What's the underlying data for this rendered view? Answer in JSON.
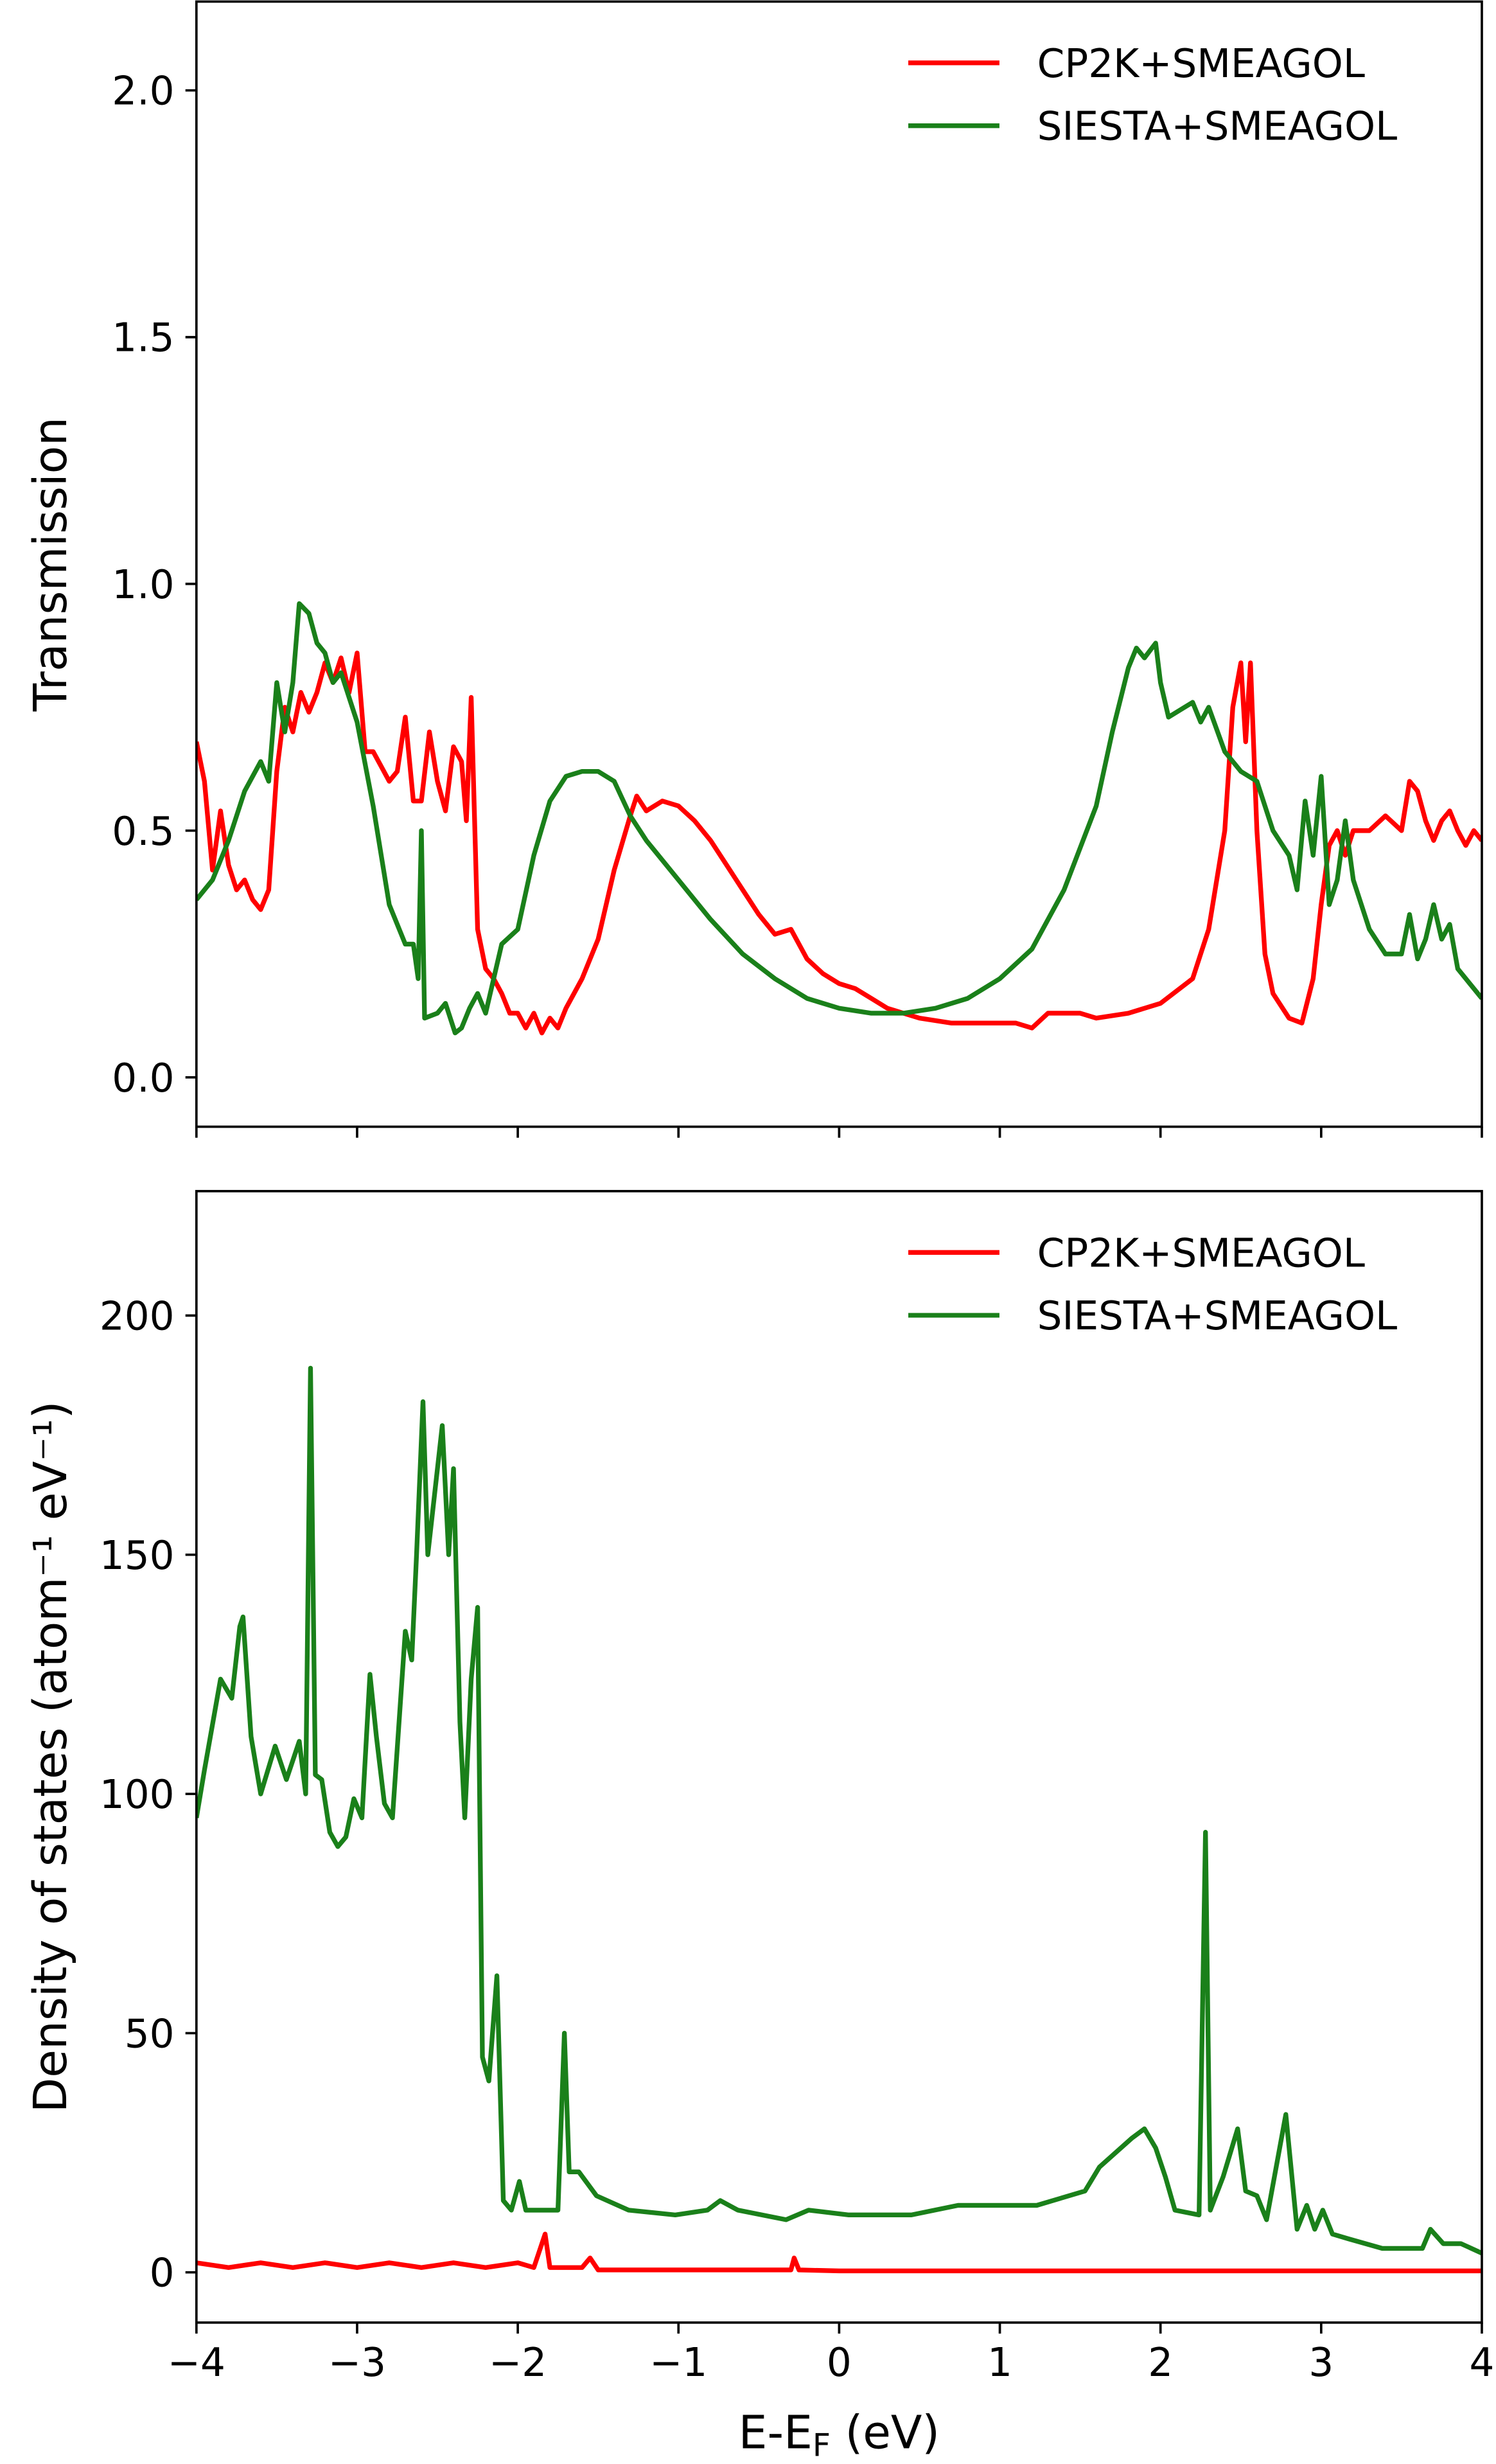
{
  "chart_data": [
    {
      "type": "line",
      "ylabel": "Transmission",
      "legend": "upper right",
      "grid": false,
      "xlim": [
        -4,
        4
      ],
      "ylim": [
        -0.1,
        2.18
      ],
      "xticks": [
        -4,
        -3,
        -2,
        -1,
        0,
        1,
        2,
        3,
        4
      ],
      "yticks": [
        {
          "value": 0,
          "label": "0.0"
        },
        {
          "value": 0.5,
          "label": "0.5"
        },
        {
          "value": 1,
          "label": "1.0"
        },
        {
          "value": 1.5,
          "label": "1.5"
        },
        {
          "value": 2,
          "label": "2.0"
        }
      ],
      "series": [
        {
          "name": "CP2K+SMEAGOL",
          "color": "#ff0000",
          "x": [
            -4,
            -3.95,
            -3.9,
            -3.85,
            -3.8,
            -3.75,
            -3.7,
            -3.65,
            -3.6,
            -3.55,
            -3.5,
            -3.45,
            -3.4,
            -3.35,
            -3.3,
            -3.25,
            -3.2,
            -3.15,
            -3.1,
            -3.05,
            -3.0,
            -2.95,
            -2.9,
            -2.85,
            -2.8,
            -2.75,
            -2.7,
            -2.65,
            -2.6,
            -2.55,
            -2.5,
            -2.45,
            -2.4,
            -2.35,
            -2.32,
            -2.29,
            -2.25,
            -2.2,
            -2.15,
            -2.1,
            -2.05,
            -2.0,
            -1.95,
            -1.9,
            -1.85,
            -1.8,
            -1.75,
            -1.7,
            -1.6,
            -1.5,
            -1.4,
            -1.3,
            -1.26,
            -1.2,
            -1.1,
            -1.0,
            -0.9,
            -0.8,
            -0.7,
            -0.6,
            -0.5,
            -0.4,
            -0.3,
            -0.2,
            -0.1,
            0,
            0.1,
            0.2,
            0.3,
            0.5,
            0.7,
            0.9,
            1.1,
            1.2,
            1.3,
            1.5,
            1.6,
            1.8,
            2.0,
            2.2,
            2.3,
            2.4,
            2.45,
            2.5,
            2.53,
            2.56,
            2.6,
            2.65,
            2.7,
            2.8,
            2.88,
            2.95,
            3.0,
            3.05,
            3.1,
            3.15,
            3.2,
            3.3,
            3.4,
            3.5,
            3.55,
            3.6,
            3.65,
            3.7,
            3.75,
            3.8,
            3.85,
            3.9,
            3.95,
            4.0
          ],
          "values": [
            0.68,
            0.6,
            0.42,
            0.54,
            0.43,
            0.38,
            0.4,
            0.36,
            0.34,
            0.38,
            0.62,
            0.75,
            0.7,
            0.78,
            0.74,
            0.78,
            0.84,
            0.8,
            0.85,
            0.78,
            0.86,
            0.66,
            0.66,
            0.63,
            0.6,
            0.62,
            0.73,
            0.56,
            0.56,
            0.7,
            0.6,
            0.54,
            0.67,
            0.64,
            0.52,
            0.77,
            0.3,
            0.22,
            0.2,
            0.17,
            0.13,
            0.13,
            0.1,
            0.13,
            0.09,
            0.12,
            0.1,
            0.14,
            0.2,
            0.28,
            0.42,
            0.53,
            0.57,
            0.54,
            0.56,
            0.55,
            0.52,
            0.48,
            0.43,
            0.38,
            0.33,
            0.29,
            0.3,
            0.24,
            0.21,
            0.19,
            0.18,
            0.16,
            0.14,
            0.12,
            0.11,
            0.11,
            0.11,
            0.1,
            0.13,
            0.13,
            0.12,
            0.13,
            0.15,
            0.2,
            0.3,
            0.5,
            0.75,
            0.84,
            0.68,
            0.84,
            0.5,
            0.25,
            0.17,
            0.12,
            0.11,
            0.2,
            0.35,
            0.47,
            0.5,
            0.45,
            0.5,
            0.5,
            0.53,
            0.5,
            0.6,
            0.58,
            0.52,
            0.48,
            0.52,
            0.54,
            0.5,
            0.47,
            0.5,
            0.48
          ]
        },
        {
          "name": "SIESTA+SMEAGOL",
          "color": "#1a801a",
          "x": [
            -4,
            -3.9,
            -3.8,
            -3.7,
            -3.6,
            -3.55,
            -3.5,
            -3.45,
            -3.4,
            -3.36,
            -3.3,
            -3.25,
            -3.2,
            -3.15,
            -3.1,
            -3.0,
            -2.9,
            -2.8,
            -2.7,
            -2.65,
            -2.62,
            -2.6,
            -2.58,
            -2.5,
            -2.45,
            -2.39,
            -2.35,
            -2.3,
            -2.25,
            -2.2,
            -2.15,
            -2.1,
            -2.0,
            -1.9,
            -1.8,
            -1.7,
            -1.6,
            -1.5,
            -1.4,
            -1.3,
            -1.2,
            -1.0,
            -0.8,
            -0.6,
            -0.4,
            -0.2,
            0,
            0.2,
            0.4,
            0.6,
            0.8,
            1.0,
            1.2,
            1.4,
            1.6,
            1.7,
            1.8,
            1.85,
            1.9,
            1.97,
            2.0,
            2.05,
            2.15,
            2.2,
            2.25,
            2.3,
            2.4,
            2.5,
            2.6,
            2.7,
            2.8,
            2.85,
            2.9,
            2.95,
            3.0,
            3.05,
            3.1,
            3.15,
            3.2,
            3.3,
            3.4,
            3.5,
            3.55,
            3.6,
            3.65,
            3.7,
            3.75,
            3.8,
            3.85,
            3.9,
            4.0
          ],
          "values": [
            0.36,
            0.4,
            0.48,
            0.58,
            0.64,
            0.6,
            0.8,
            0.7,
            0.8,
            0.96,
            0.94,
            0.88,
            0.86,
            0.8,
            0.82,
            0.72,
            0.55,
            0.35,
            0.27,
            0.27,
            0.2,
            0.5,
            0.12,
            0.13,
            0.15,
            0.09,
            0.1,
            0.14,
            0.17,
            0.13,
            0.2,
            0.27,
            0.3,
            0.45,
            0.56,
            0.61,
            0.62,
            0.62,
            0.6,
            0.53,
            0.48,
            0.4,
            0.32,
            0.25,
            0.2,
            0.16,
            0.14,
            0.13,
            0.13,
            0.14,
            0.16,
            0.2,
            0.26,
            0.38,
            0.55,
            0.7,
            0.83,
            0.87,
            0.85,
            0.88,
            0.8,
            0.73,
            0.75,
            0.76,
            0.72,
            0.75,
            0.66,
            0.62,
            0.6,
            0.5,
            0.45,
            0.38,
            0.56,
            0.45,
            0.61,
            0.35,
            0.4,
            0.52,
            0.4,
            0.3,
            0.25,
            0.25,
            0.33,
            0.24,
            0.28,
            0.35,
            0.28,
            0.31,
            0.22,
            0.2,
            0.16
          ]
        }
      ]
    },
    {
      "type": "line",
      "ylabel": "Density of states (atom⁻¹ eV⁻¹)",
      "xlabel": [
        "E-E",
        "F",
        " (eV)"
      ],
      "legend": "upper right",
      "grid": false,
      "xlim": [
        -4,
        4
      ],
      "ylim": [
        -10.5,
        226
      ],
      "xticks": [
        {
          "value": -4,
          "label": "−4"
        },
        {
          "value": -3,
          "label": "−3"
        },
        {
          "value": -2,
          "label": "−2"
        },
        {
          "value": -1,
          "label": "−1"
        },
        0,
        1,
        2,
        3,
        4
      ],
      "yticks": [
        0,
        50,
        100,
        150,
        200
      ],
      "series": [
        {
          "name": "CP2K+SMEAGOL",
          "color": "#ff0000",
          "x": [
            -4,
            -3.8,
            -3.6,
            -3.4,
            -3.2,
            -3.0,
            -2.8,
            -2.6,
            -2.4,
            -2.2,
            -2.0,
            -1.9,
            -1.83,
            -1.8,
            -1.6,
            -1.55,
            -1.5,
            -1.0,
            -0.3,
            -0.28,
            -0.25,
            0,
            1,
            2,
            3,
            4
          ],
          "values": [
            2,
            1,
            2,
            1,
            2,
            1,
            2,
            1,
            2,
            1,
            2,
            1,
            8,
            1,
            1,
            3,
            0.5,
            0.5,
            0.5,
            3,
            0.5,
            0.3,
            0.3,
            0.3,
            0.3,
            0.3
          ]
        },
        {
          "name": "SIESTA+SMEAGOL",
          "color": "#1a801a",
          "x": [
            -4,
            -3.95,
            -3.85,
            -3.78,
            -3.73,
            -3.71,
            -3.66,
            -3.6,
            -3.51,
            -3.44,
            -3.36,
            -3.32,
            -3.29,
            -3.26,
            -3.22,
            -3.17,
            -3.12,
            -3.07,
            -3.02,
            -2.97,
            -2.92,
            -2.88,
            -2.83,
            -2.78,
            -2.7,
            -2.66,
            -2.63,
            -2.59,
            -2.56,
            -2.5,
            -2.47,
            -2.43,
            -2.4,
            -2.36,
            -2.33,
            -2.29,
            -2.25,
            -2.22,
            -2.18,
            -2.13,
            -2.09,
            -2.04,
            -1.99,
            -1.95,
            -1.75,
            -1.71,
            -1.68,
            -1.62,
            -1.51,
            -1.31,
            -1.02,
            -0.82,
            -0.74,
            -0.63,
            -0.33,
            -0.19,
            0.06,
            0.45,
            0.74,
            1.23,
            1.53,
            1.62,
            1.82,
            1.9,
            1.97,
            2.03,
            2.09,
            2.24,
            2.28,
            2.31,
            2.39,
            2.48,
            2.53,
            2.6,
            2.66,
            2.78,
            2.85,
            2.91,
            2.96,
            3.01,
            3.07,
            3.17,
            3.38,
            3.63,
            3.68,
            3.76,
            3.87,
            4.0
          ],
          "values": [
            95,
            105,
            124,
            120,
            135,
            137,
            112,
            100,
            110,
            103,
            111,
            100,
            189,
            104,
            103,
            92,
            89,
            91,
            99,
            95,
            125,
            112,
            98,
            95,
            134,
            128,
            150,
            182,
            150,
            168,
            177,
            150,
            168,
            115,
            95,
            124,
            139,
            45,
            40,
            62,
            15,
            13,
            19,
            13,
            13,
            50,
            21,
            21,
            16,
            13,
            12,
            13,
            15,
            13,
            11,
            13,
            12,
            12,
            14,
            14,
            17,
            22,
            28,
            30,
            26,
            20,
            13,
            12,
            92,
            13,
            20,
            30,
            17,
            16,
            11,
            33,
            9,
            14,
            9,
            13,
            8,
            7,
            5,
            5,
            9,
            6,
            6,
            4
          ]
        }
      ]
    }
  ]
}
